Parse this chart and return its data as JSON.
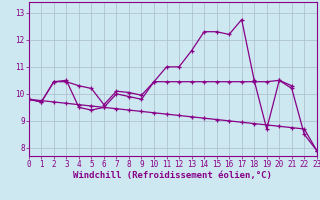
{
  "xlabel": "Windchill (Refroidissement éolien,°C)",
  "background_color": "#cde8f0",
  "line_color": "#880088",
  "grid_color": "#aabbcc",
  "x": [
    0,
    1,
    2,
    3,
    4,
    5,
    6,
    7,
    8,
    9,
    10,
    11,
    12,
    13,
    14,
    15,
    16,
    17,
    18,
    19,
    20,
    21,
    22,
    23
  ],
  "line1_y": [
    9.8,
    9.7,
    10.45,
    10.45,
    10.3,
    10.2,
    9.6,
    10.1,
    10.05,
    9.95,
    10.45,
    10.45,
    10.45,
    10.45,
    10.45,
    10.45,
    10.45,
    10.45,
    10.45,
    10.45,
    10.5,
    10.3,
    null,
    null
  ],
  "line2_y": [
    9.8,
    9.7,
    10.45,
    10.5,
    9.5,
    9.4,
    9.5,
    10.0,
    9.9,
    9.8,
    10.45,
    11.0,
    11.0,
    11.6,
    12.3,
    12.3,
    12.2,
    12.75,
    10.5,
    8.7,
    10.5,
    10.2,
    8.5,
    7.9
  ],
  "line3_y": [
    9.8,
    9.75,
    9.7,
    9.65,
    9.6,
    9.55,
    9.5,
    9.45,
    9.4,
    9.35,
    9.3,
    9.25,
    9.2,
    9.15,
    9.1,
    9.05,
    9.0,
    8.95,
    8.9,
    8.85,
    8.8,
    8.75,
    8.7,
    7.9
  ],
  "xlim": [
    0,
    23
  ],
  "ylim": [
    7.7,
    13.4
  ],
  "yticks": [
    8,
    9,
    10,
    11,
    12,
    13
  ],
  "xticks": [
    0,
    1,
    2,
    3,
    4,
    5,
    6,
    7,
    8,
    9,
    10,
    11,
    12,
    13,
    14,
    15,
    16,
    17,
    18,
    19,
    20,
    21,
    22,
    23
  ],
  "tick_fontsize": 5.5,
  "label_fontsize": 6.5
}
